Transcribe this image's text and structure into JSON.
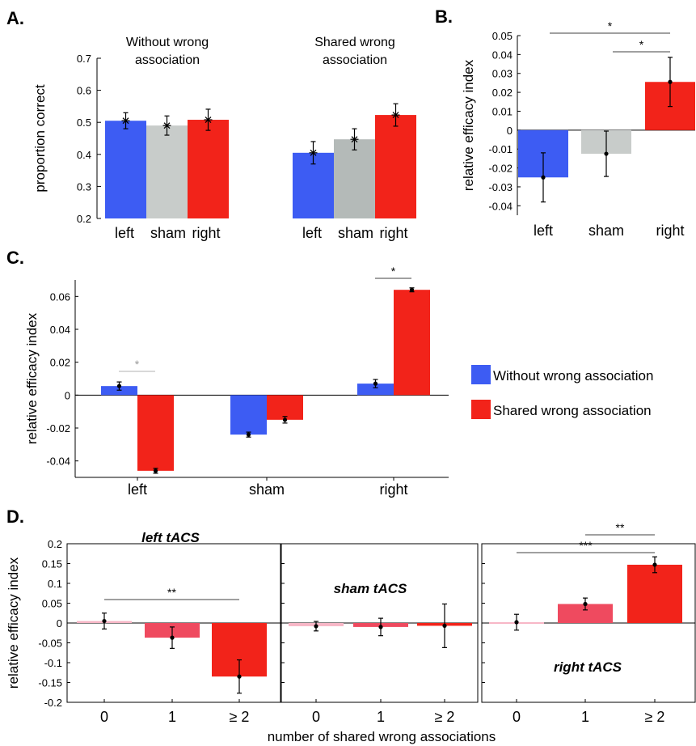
{
  "chart_data": [
    {
      "id": "A",
      "type": "bar",
      "panel_label": "A.",
      "ylabel": "proportion correct",
      "ylim": [
        0.2,
        0.7
      ],
      "yticks": [
        "0.2",
        "0.3",
        "0.4",
        "0.5",
        "0.6",
        "0.7"
      ],
      "groups": [
        {
          "title_lines": [
            "Without wrong",
            "association"
          ],
          "categories": [
            "left",
            "sham",
            "right"
          ],
          "values": [
            0.505,
            0.49,
            0.508
          ],
          "errors": [
            0.025,
            0.03,
            0.033
          ]
        },
        {
          "title_lines": [
            "Shared wrong",
            "association"
          ],
          "categories": [
            "left",
            "sham",
            "right"
          ],
          "values": [
            0.405,
            0.447,
            0.523
          ],
          "errors": [
            0.035,
            0.033,
            0.035
          ]
        }
      ],
      "colors": [
        "#3d5cf3",
        "#c8ccca",
        "#f2231a"
      ],
      "colors_group2": [
        "#3d5cf3",
        "#b4bab8",
        "#f2231a"
      ]
    },
    {
      "id": "B",
      "type": "bar",
      "panel_label": "B.",
      "ylabel": "relative efficacy index",
      "ylim": [
        -0.045,
        0.05
      ],
      "yticks": [
        "0.05",
        "0.04",
        "0.03",
        "0.02",
        "0.01",
        "0",
        "-0.01",
        "-0.02",
        "-0.03",
        "-0.04"
      ],
      "categories": [
        "left",
        "sham",
        "right"
      ],
      "values": [
        -0.025,
        -0.0125,
        0.0255
      ],
      "errors": [
        0.013,
        0.012,
        0.013
      ],
      "colors": [
        "#3d5cf3",
        "#c8ccca",
        "#f2231a"
      ],
      "significance": [
        {
          "from": 0,
          "to": 2,
          "label": "*"
        },
        {
          "from": 1,
          "to": 2,
          "label": "*"
        }
      ]
    },
    {
      "id": "C",
      "type": "bar",
      "panel_label": "C.",
      "ylabel": "relative efficacy index",
      "ylim": [
        -0.05,
        0.07
      ],
      "yticks": [
        "0.06",
        "0.04",
        "0.02",
        "0",
        "-0.02",
        "-0.04"
      ],
      "categories": [
        "left",
        "sham",
        "right"
      ],
      "series": [
        {
          "name": "Without wrong association",
          "color": "#3d5cf3",
          "values": [
            0.0055,
            -0.024,
            0.007
          ],
          "errors": [
            0.0025,
            0.0015,
            0.0025
          ]
        },
        {
          "name": "Shared wrong association",
          "color": "#f2231a",
          "values": [
            -0.046,
            -0.015,
            0.064
          ],
          "errors": [
            0.0015,
            0.002,
            0.0012
          ]
        }
      ],
      "significance": [
        {
          "category": 0,
          "label": "*",
          "color": "#999999"
        },
        {
          "category": 2,
          "label": "*",
          "color": "#000000"
        }
      ]
    },
    {
      "id": "D",
      "type": "bar",
      "panel_label": "D.",
      "ylabel": "relative efficacy index",
      "xlabel": "number of shared wrong associations",
      "ylim": [
        -0.2,
        0.2
      ],
      "yticks": [
        "0.2",
        "0.15",
        "0.1",
        "0.05",
        "0",
        "-0.05",
        "-0.1",
        "-0.15",
        "-0.2"
      ],
      "categories": [
        "0",
        "1",
        "≥ 2"
      ],
      "colors": [
        "#f7b6c6",
        "#ef4a5f",
        "#f2231a"
      ],
      "subpanels": [
        {
          "title": "left tACS",
          "values": [
            0.005,
            -0.037,
            -0.135
          ],
          "errors": [
            0.02,
            0.027,
            0.042
          ],
          "significance": [
            {
              "from": 0,
              "to": 2,
              "label": "**"
            }
          ]
        },
        {
          "title": "sham tACS",
          "values": [
            -0.008,
            -0.01,
            -0.007
          ],
          "errors": [
            0.012,
            0.022,
            0.055
          ],
          "significance": []
        },
        {
          "title": "right tACS",
          "values": [
            0.002,
            0.048,
            0.147
          ],
          "errors": [
            0.02,
            0.015,
            0.02
          ],
          "significance": [
            {
              "from": 1,
              "to": 2,
              "label": "**"
            },
            {
              "from": 0,
              "to": 2,
              "label": "***"
            }
          ]
        }
      ]
    }
  ]
}
